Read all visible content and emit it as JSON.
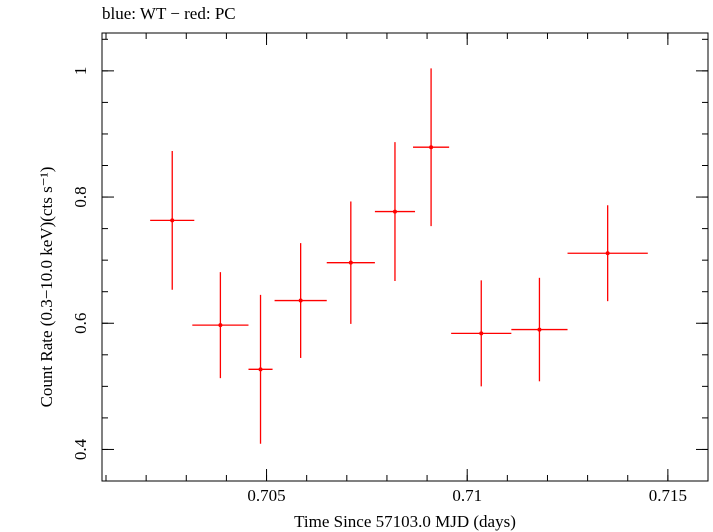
{
  "chart_data": {
    "type": "scatter",
    "title": "blue: WT − red: PC",
    "xlabel": "Time Since 57103.0 MJD (days)",
    "ylabel": "Count Rate (0.3−10.0 keV)(cts s⁻¹)",
    "xlim": [
      0.7009,
      0.716
    ],
    "ylim": [
      0.35,
      1.06
    ],
    "xticks": [
      0.705,
      0.71,
      0.715
    ],
    "xtick_labels": [
      "0.705",
      "0.71",
      "0.715"
    ],
    "yticks": [
      0.4,
      0.6,
      0.8,
      1.0
    ],
    "ytick_labels": [
      "0.4",
      "0.6",
      "0.8",
      "1"
    ],
    "grid": false,
    "series": [
      {
        "color": "#ff0000",
        "points": [
          {
            "x": 0.70265,
            "y": 0.763,
            "xerr": 0.00055,
            "yerr_low": 0.11,
            "yerr_high": 0.11
          },
          {
            "x": 0.70385,
            "y": 0.597,
            "xerr": 0.0007,
            "yerr_low": 0.084,
            "yerr_high": 0.084
          },
          {
            "x": 0.70485,
            "y": 0.527,
            "xerr": 0.0003,
            "yerr_low": 0.118,
            "yerr_high": 0.118
          },
          {
            "x": 0.70585,
            "y": 0.636,
            "xerr": 0.00065,
            "yerr_low": 0.091,
            "yerr_high": 0.091
          },
          {
            "x": 0.7071,
            "y": 0.696,
            "xerr": 0.0006,
            "yerr_low": 0.097,
            "yerr_high": 0.097
          },
          {
            "x": 0.7082,
            "y": 0.777,
            "xerr": 0.0005,
            "yerr_low": 0.11,
            "yerr_high": 0.11
          },
          {
            "x": 0.7091,
            "y": 0.879,
            "xerr": 0.00045,
            "yerr_low": 0.125,
            "yerr_high": 0.125
          },
          {
            "x": 0.71035,
            "y": 0.584,
            "xerr": 0.00075,
            "yerr_low": 0.084,
            "yerr_high": 0.084
          },
          {
            "x": 0.7118,
            "y": 0.59,
            "xerr": 0.0007,
            "yerr_low": 0.082,
            "yerr_high": 0.082
          },
          {
            "x": 0.7135,
            "y": 0.711,
            "xerr": 0.001,
            "yerr_low": 0.076,
            "yerr_high": 0.076
          }
        ]
      }
    ]
  }
}
